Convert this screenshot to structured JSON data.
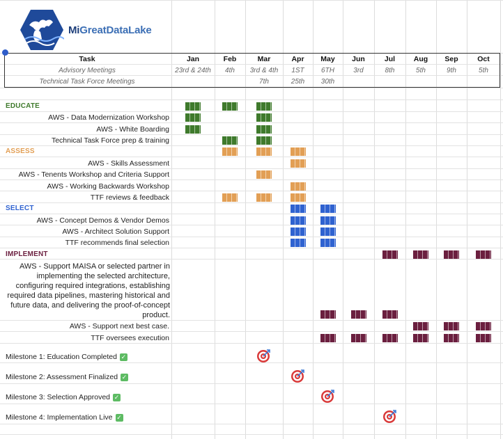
{
  "brand": {
    "logo_prefix": "Mi",
    "logo_rest": "GreatDataLake"
  },
  "header": {
    "task_label": "Task",
    "months": [
      "Jan",
      "Feb",
      "Mar",
      "Apr",
      "May",
      "Jun",
      "Jul",
      "Aug",
      "Sep",
      "Oct"
    ],
    "advisory": {
      "label": "Advisory Meetings",
      "dates": [
        "23rd & 24th",
        "4th",
        "3rd & 4th",
        "1ST",
        "6TH",
        "3rd",
        "8th",
        "5th",
        "9th",
        "5th"
      ]
    },
    "ttf": {
      "label": "Technical Task Force Meetings",
      "dates": [
        "",
        "",
        "7th",
        "25th",
        "30th",
        "",
        "",
        "",
        "",
        ""
      ]
    }
  },
  "colors": {
    "educate": "#3f7a2c",
    "assess": "#e29f55",
    "select": "#2f62d0",
    "implement": "#6b1f3f"
  },
  "sections": {
    "educate": {
      "title": "EDUCATE",
      "tasks": [
        "AWS - Data Modernization Workshop",
        "AWS - White Boarding",
        "Technical Task Force prep & training"
      ]
    },
    "assess": {
      "title": "ASSESS",
      "tasks": [
        "AWS - Skills Assessment",
        "AWS - Tenents Workshop and Criteria Support",
        "AWS - Working Backwards Workshop",
        "TTF reviews & feedback"
      ]
    },
    "select": {
      "title": "SELECT",
      "tasks": [
        "AWS - Concept Demos & Vendor Demos",
        "AWS - Architect Solution Support",
        "TTF recommends final selection"
      ]
    },
    "implement": {
      "title": "IMPLEMENT",
      "tasks": [
        "AWS - Support MAISA or selected partner in implementing the selected architecture, configuring required integrations, establishing required data pipelines, mastering historical and future data, and delivering the proof-of-concept product.",
        "AWS - Support next best case.",
        "TTF oversees execution"
      ]
    }
  },
  "schedule": {
    "educate_header": [
      0,
      1,
      2
    ],
    "educate": [
      [
        0,
        2
      ],
      [
        0,
        2
      ],
      [
        1,
        2
      ]
    ],
    "assess_header": [
      1,
      2,
      3
    ],
    "assess": [
      [
        3
      ],
      [
        2
      ],
      [
        3
      ],
      [
        1,
        2,
        3
      ]
    ],
    "select_header": [
      3,
      4
    ],
    "select": [
      [
        3,
        4
      ],
      [
        3,
        4
      ],
      [
        3,
        4
      ]
    ],
    "implement_header": [
      6,
      7,
      8,
      9
    ],
    "implement": [
      [
        4,
        5,
        6
      ],
      [
        7,
        8,
        9
      ],
      [
        4,
        5,
        6,
        7,
        8,
        9
      ]
    ]
  },
  "milestones": [
    {
      "label": "Milestone 1: Education Completed",
      "month_index": 2
    },
    {
      "label": "Milestone 2: Assessment Finalized",
      "month_index": 3
    },
    {
      "label": "Milestone 3: Selection Approved",
      "month_index": 4
    },
    {
      "label": "Milestone 4: Implementation Live",
      "month_index": 6
    }
  ]
}
